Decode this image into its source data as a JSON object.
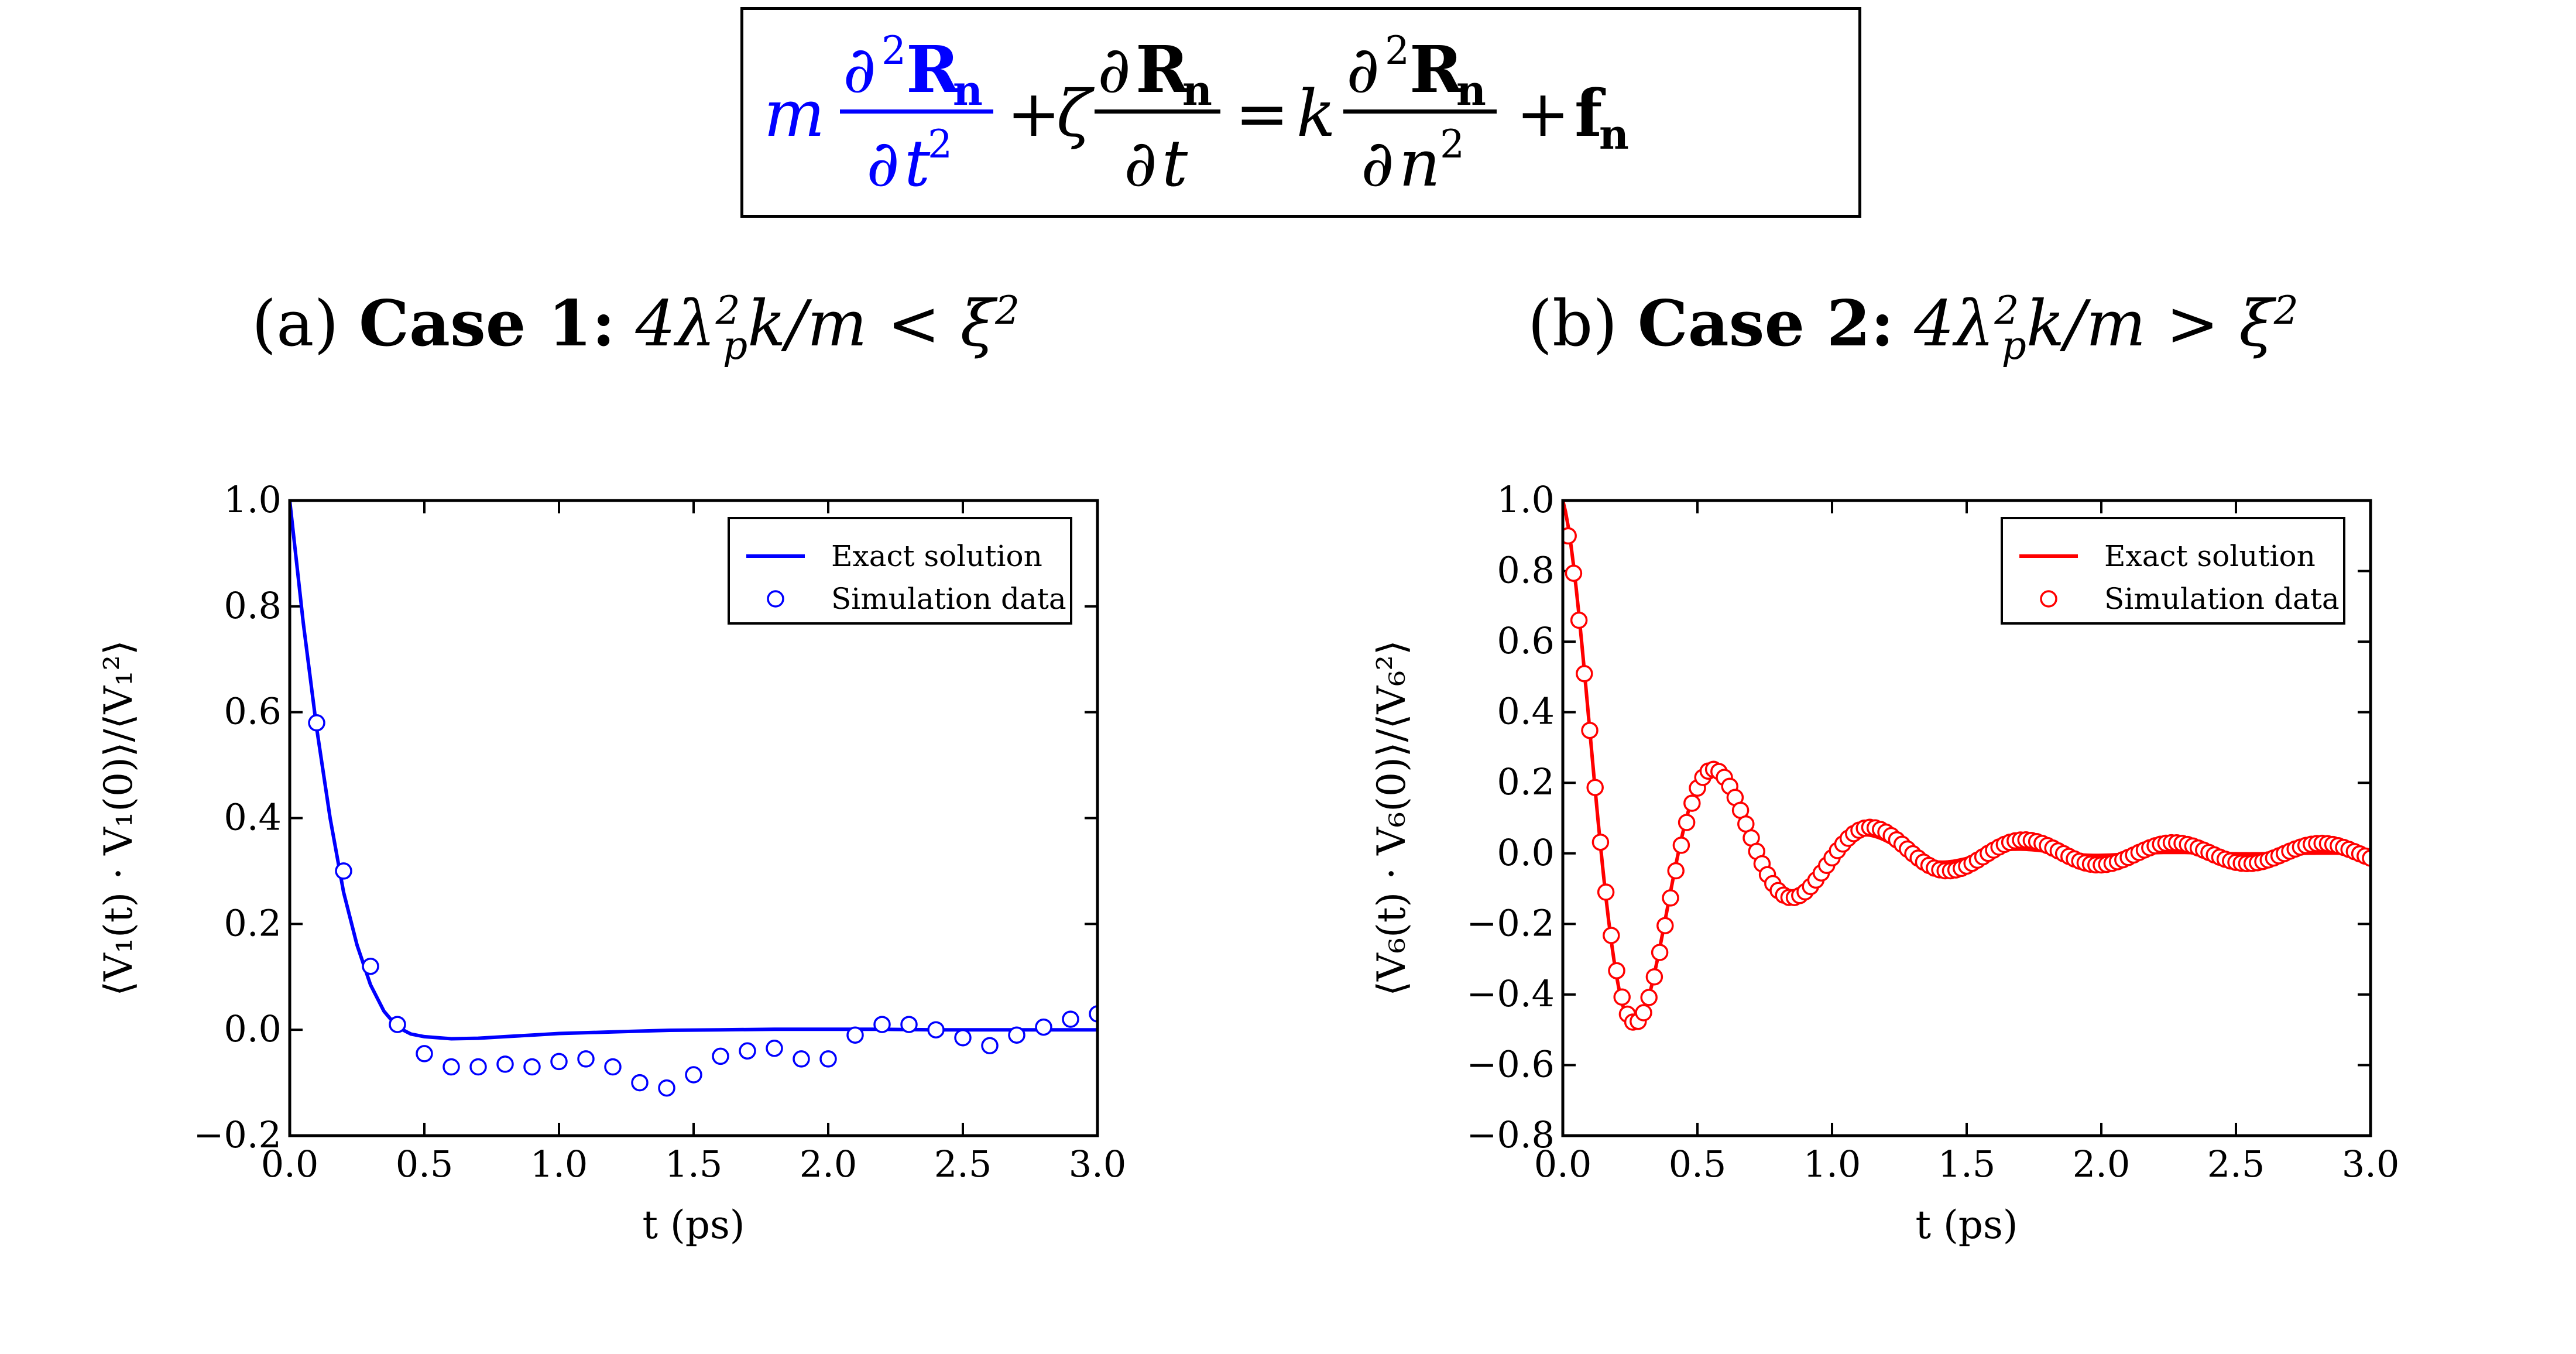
{
  "equation": {
    "highlighted_term": "m ∂²R_n/∂t²",
    "text": "+ ζ ∂R_n/∂t = k ∂²R_n/∂n² + f_n",
    "highlight_color": "#0000ff"
  },
  "captions": {
    "a": {
      "prefix": "(a)",
      "bold": "Case 1:",
      "condition": "4λ_p²k/m < ξ²"
    },
    "b": {
      "prefix": "(b)",
      "bold": "Case 2:",
      "condition": "4λ_p²k/m > ξ²"
    }
  },
  "chart_data": [
    {
      "type": "line",
      "panel": "a",
      "color": "#0000ff",
      "xlabel": "t (ps)",
      "ylabel": "⟨V₁(t) · V₁(0)⟩/⟨V₁²⟩",
      "xlim": [
        0.0,
        3.0
      ],
      "ylim": [
        -0.2,
        1.0
      ],
      "xticks": [
        0.0,
        0.5,
        1.0,
        1.5,
        2.0,
        2.5,
        3.0
      ],
      "xtick_labels": [
        "0.0",
        "0.5",
        "1.0",
        "1.5",
        "2.0",
        "2.5",
        "3.0"
      ],
      "yticks": [
        -0.2,
        0.0,
        0.2,
        0.4,
        0.6,
        0.8,
        1.0
      ],
      "ytick_labels": [
        "−0.2",
        "0.0",
        "0.2",
        "0.4",
        "0.6",
        "0.8",
        "1.0"
      ],
      "legend": {
        "position": "top-right",
        "line_label": "Exact solution",
        "marker_label": "Simulation data"
      },
      "series": [
        {
          "name": "Exact solution",
          "style": "line",
          "x": [
            0.0,
            0.05,
            0.1,
            0.15,
            0.2,
            0.25,
            0.3,
            0.35,
            0.4,
            0.45,
            0.5,
            0.6,
            0.7,
            0.8,
            0.9,
            1.0,
            1.2,
            1.4,
            1.6,
            1.8,
            2.0,
            2.2,
            2.4,
            2.6,
            2.8,
            3.0
          ],
          "y": [
            1.0,
            0.77,
            0.57,
            0.4,
            0.26,
            0.16,
            0.085,
            0.035,
            0.005,
            -0.008,
            -0.013,
            -0.017,
            -0.016,
            -0.013,
            -0.01,
            -0.007,
            -0.004,
            -0.001,
            0.0,
            0.001,
            0.001,
            0.001,
            0.0,
            0.0,
            0.0,
            0.0
          ]
        },
        {
          "name": "Simulation data",
          "style": "markers",
          "x": [
            0.1,
            0.2,
            0.3,
            0.4,
            0.5,
            0.6,
            0.7,
            0.8,
            0.9,
            1.0,
            1.1,
            1.2,
            1.3,
            1.4,
            1.5,
            1.6,
            1.7,
            1.8,
            1.9,
            2.0,
            2.1,
            2.2,
            2.3,
            2.4,
            2.5,
            2.6,
            2.7,
            2.8,
            2.9,
            3.0
          ],
          "y": [
            0.58,
            0.3,
            0.12,
            0.01,
            -0.045,
            -0.07,
            -0.07,
            -0.065,
            -0.07,
            -0.06,
            -0.055,
            -0.07,
            -0.1,
            -0.11,
            -0.085,
            -0.05,
            -0.04,
            -0.035,
            -0.055,
            -0.055,
            -0.01,
            0.01,
            0.01,
            0.0,
            -0.015,
            -0.03,
            -0.01,
            0.005,
            0.02,
            0.03
          ]
        }
      ]
    },
    {
      "type": "line",
      "panel": "b",
      "color": "#ff0000",
      "xlabel": "t (ps)",
      "ylabel": "⟨V₆(t) · V₆(0)⟩/⟨V₆²⟩",
      "xlim": [
        0.0,
        3.0
      ],
      "ylim": [
        -0.8,
        1.0
      ],
      "xticks": [
        0.0,
        0.5,
        1.0,
        1.5,
        2.0,
        2.5,
        3.0
      ],
      "xtick_labels": [
        "0.0",
        "0.5",
        "1.0",
        "1.5",
        "2.0",
        "2.5",
        "3.0"
      ],
      "yticks": [
        -0.8,
        -0.6,
        -0.4,
        -0.2,
        0.0,
        0.2,
        0.4,
        0.6,
        0.8,
        1.0
      ],
      "ytick_labels": [
        "−0.8",
        "−0.6",
        "−0.4",
        "−0.2",
        "0.0",
        "0.2",
        "0.4",
        "0.6",
        "0.8",
        "1.0"
      ],
      "legend": {
        "position": "top-right",
        "line_label": "Exact solution",
        "marker_label": "Simulation data"
      },
      "series": [
        {
          "name": "Exact solution",
          "style": "line",
          "model": {
            "amplitude": 1.0,
            "decay_per_ps": 2.6,
            "frequency_cycles_per_ps": 1.75
          }
        },
        {
          "name": "Simulation data",
          "style": "markers",
          "x_start": 0.02,
          "x_step": 0.02,
          "x_end": 3.0,
          "model": {
            "amplitude": 0.97,
            "decay_per_ps": 2.6,
            "frequency_cycles_per_ps": 1.74,
            "phase_shift": 0.15,
            "residual_wobble": 0.028,
            "wobble_period_ps": 0.55
          }
        }
      ]
    }
  ]
}
